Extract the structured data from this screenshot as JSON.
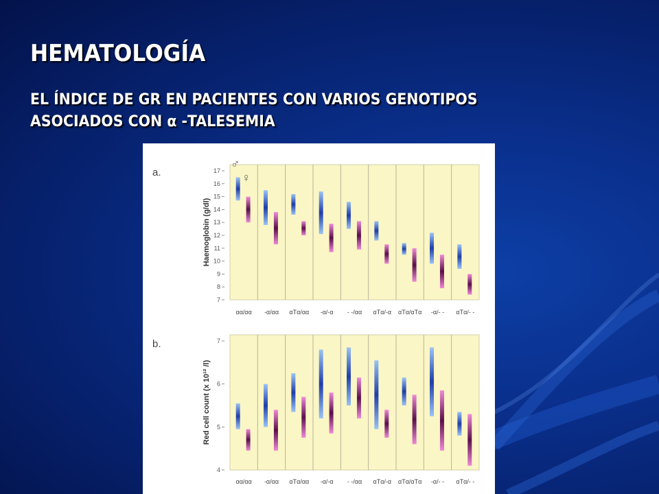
{
  "slide": {
    "title": "HEMATOLOGÍA",
    "subtitle_line1": "EL ÍNDICE DE GR EN PACIENTES CON VARIOS GENOTIPOS",
    "subtitle_line2": "ASOCIADOS CON α -TALESEMIA"
  },
  "colors": {
    "background": "#0a2f8c",
    "panel_fill": "#fbf6c5",
    "male_bar": "#5b8fe0",
    "female_bar": "#e060c8"
  },
  "chart_data": [
    {
      "type": "bar",
      "panel_label": "a.",
      "ylabel": "Haemoglobin (g/dl)",
      "ylim": [
        7,
        17
      ],
      "yticks": [
        "7",
        "8",
        "9",
        "10",
        "11",
        "12",
        "13",
        "14",
        "15",
        "16",
        "17"
      ],
      "categories": [
        "αα/αα",
        "-α/αα",
        "αTα/αα",
        "-α/-α",
        "- -/αα",
        "αTα/-α",
        "αTα/αTα",
        "-α/- -",
        "αTα/- -"
      ],
      "legend": {
        "male_symbol": "♂",
        "female_symbol": "♀"
      },
      "series": [
        {
          "sex": "male",
          "low": [
            14.7,
            12.8,
            13.6,
            12.1,
            12.5,
            11.6,
            10.5,
            9.8,
            9.4
          ],
          "mean": [
            15.5,
            14.1,
            14.4,
            13.6,
            13.5,
            12.2,
            10.9,
            10.9,
            10.3
          ],
          "high": [
            16.5,
            15.5,
            15.2,
            15.4,
            14.6,
            13.1,
            11.4,
            12.2,
            11.3
          ]
        },
        {
          "sex": "female",
          "low": [
            13.0,
            11.3,
            12.0,
            10.7,
            10.9,
            9.8,
            8.4,
            7.9,
            7.4
          ],
          "mean": [
            14.1,
            12.6,
            12.5,
            11.8,
            12.0,
            10.5,
            9.6,
            9.2,
            8.3
          ],
          "high": [
            15.0,
            13.8,
            13.1,
            12.9,
            13.1,
            11.3,
            11.0,
            10.5,
            9.0
          ]
        }
      ]
    },
    {
      "type": "bar",
      "panel_label": "b.",
      "ylabel": "Red cell count (x 10¹² /l)",
      "ylim": [
        4,
        7
      ],
      "yticks": [
        "4",
        "5",
        "6",
        "7"
      ],
      "categories": [
        "αα/αα",
        "-α/αα",
        "αTα/αα",
        "-α/-α",
        "- -/αα",
        "αTα/-α",
        "αTα/αTα",
        "-α/- -",
        "αTα/- -"
      ],
      "series": [
        {
          "sex": "male",
          "low": [
            4.95,
            5.0,
            5.35,
            5.2,
            5.5,
            4.95,
            5.5,
            5.25,
            4.8
          ],
          "mean": [
            5.2,
            5.4,
            5.8,
            6.0,
            6.3,
            5.7,
            5.75,
            6.1,
            5.05
          ],
          "high": [
            5.55,
            6.0,
            6.25,
            6.8,
            6.85,
            6.55,
            6.15,
            6.85,
            5.35
          ]
        },
        {
          "sex": "female",
          "low": [
            4.45,
            4.45,
            4.75,
            4.85,
            5.2,
            4.75,
            4.6,
            4.45,
            4.1
          ],
          "mean": [
            4.7,
            4.85,
            5.2,
            5.35,
            5.7,
            5.1,
            5.2,
            5.0,
            4.75
          ],
          "high": [
            4.95,
            5.4,
            5.7,
            5.8,
            6.15,
            5.4,
            5.75,
            5.85,
            5.3
          ]
        }
      ]
    }
  ]
}
